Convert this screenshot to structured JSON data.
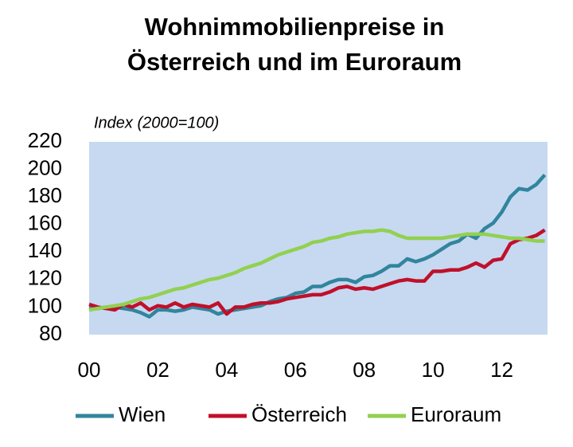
{
  "chart_data": {
    "type": "line",
    "title": [
      "Wohnimmobilienpreise in",
      "Österreich und im Euroraum"
    ],
    "y_label": "Index (2000=100)",
    "x": [
      0,
      0.25,
      0.5,
      0.75,
      1,
      1.25,
      1.5,
      1.75,
      2,
      2.25,
      2.5,
      2.75,
      3,
      3.25,
      3.5,
      3.75,
      4,
      4.25,
      4.5,
      4.75,
      5,
      5.25,
      5.5,
      5.75,
      6,
      6.25,
      6.5,
      6.75,
      7,
      7.25,
      7.5,
      7.75,
      8,
      8.25,
      8.5,
      8.75,
      9,
      9.25,
      9.5,
      9.75,
      10,
      10.25,
      10.5,
      10.75,
      11,
      11.25,
      11.5,
      11.75,
      12,
      12.25,
      12.5,
      12.75,
      13,
      13.25
    ],
    "series": [
      {
        "name": "Wien",
        "color": "#31859c",
        "values": [
          100,
          99,
          100,
          100,
          99,
          98,
          96,
          93,
          98,
          98,
          97,
          98,
          100,
          99,
          98,
          95,
          97,
          98,
          99,
          100,
          101,
          104,
          106,
          107,
          110,
          111,
          115,
          115,
          118,
          120,
          120,
          118,
          122,
          123,
          126,
          130,
          130,
          135,
          133,
          135,
          138,
          142,
          146,
          148,
          153,
          150,
          157,
          161,
          169,
          180,
          186,
          185,
          189,
          196
        ]
      },
      {
        "name": "Österreich",
        "color": "#c0102a",
        "values": [
          102,
          100,
          99,
          98,
          102,
          100,
          103,
          98,
          101,
          100,
          103,
          100,
          102,
          101,
          100,
          103,
          95,
          100,
          100,
          102,
          103,
          103,
          104,
          106,
          107,
          108,
          109,
          109,
          111,
          114,
          115,
          113,
          114,
          113,
          115,
          117,
          119,
          120,
          119,
          119,
          126,
          126,
          127,
          127,
          129,
          132,
          129,
          134,
          135,
          146,
          149,
          150,
          152,
          156
        ]
      },
      {
        "name": "Euroraum",
        "color": "#92d050",
        "values": [
          98,
          99,
          100,
          101,
          102,
          104,
          106,
          107,
          109,
          111,
          113,
          114,
          116,
          118,
          120,
          121,
          123,
          125,
          128,
          130,
          132,
          135,
          138,
          140,
          142,
          144,
          147,
          148,
          150,
          151,
          153,
          154,
          155,
          155,
          156,
          155,
          152,
          150,
          150,
          150,
          150,
          150,
          151,
          152,
          153,
          153,
          153,
          152,
          151,
          150,
          150,
          149,
          148,
          148
        ]
      }
    ],
    "xlim": [
      0,
      13.33
    ],
    "xticks": [
      {
        "value": 0,
        "label": "00"
      },
      {
        "value": 2,
        "label": "02"
      },
      {
        "value": 4,
        "label": "04"
      },
      {
        "value": 6,
        "label": "06"
      },
      {
        "value": 8,
        "label": "08"
      },
      10,
      12
    ],
    "ylim": [
      80,
      220
    ],
    "yticks": [
      80,
      100,
      120,
      140,
      160,
      180,
      200,
      220
    ],
    "plot_background": "#c6d9f1",
    "legend": "bottom"
  }
}
